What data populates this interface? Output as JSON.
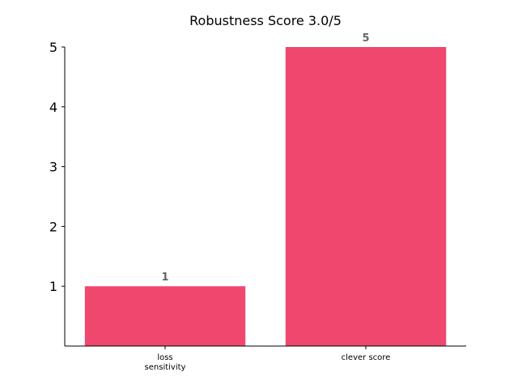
{
  "chart_data": {
    "type": "bar",
    "title": "Robustness Score 3.0/5",
    "categories": [
      [
        "loss",
        "sensitivity"
      ],
      [
        "clever score"
      ]
    ],
    "values": [
      1,
      5
    ],
    "value_labels": [
      "1",
      "5"
    ],
    "yticks": [
      "1",
      "2",
      "3",
      "4",
      "5"
    ],
    "ylim": [
      0,
      5
    ],
    "xlabel": "",
    "ylabel": "",
    "grid": false,
    "bar_color": "#f0476f",
    "value_label_color": "#666666"
  }
}
